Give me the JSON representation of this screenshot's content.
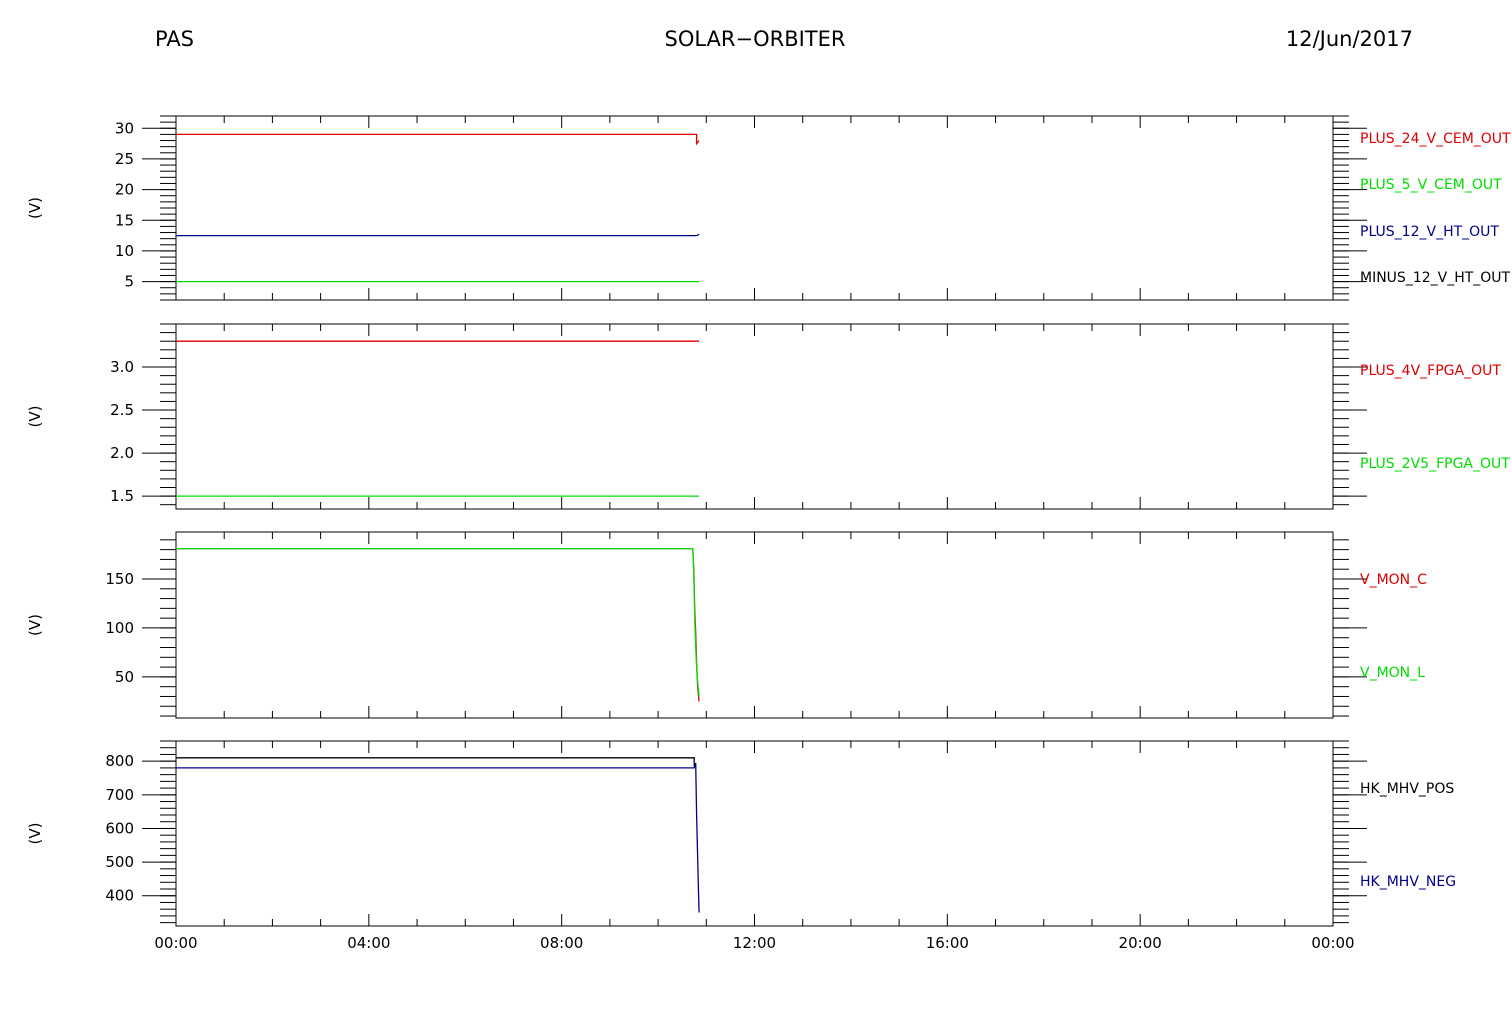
{
  "header": {
    "left": "PAS",
    "center": "SOLAR−ORBITER",
    "right": "12/Jun/2017"
  },
  "colors": {
    "red": "#e00000",
    "green": "#00dd00",
    "blue": "#00008b",
    "black": "#000000"
  },
  "chart_data": [
    {
      "type": "line",
      "ylabel": "(V)",
      "ylim": [
        2,
        32
      ],
      "yticks": [
        5,
        10,
        15,
        20,
        25,
        30
      ],
      "yminor": 1,
      "xlim": [
        0,
        24
      ],
      "series": [
        {
          "name": "PLUS_24_V_CEM_OUT",
          "color": "#e00000",
          "x": [
            0,
            10.8,
            10.8,
            10.85
          ],
          "y": [
            29.0,
            29.0,
            27.5,
            28.0
          ]
        },
        {
          "name": "PLUS_5_V_CEM_OUT",
          "color": "#00dd00",
          "x": [
            0,
            10.85
          ],
          "y": [
            5.0,
            5.0
          ]
        },
        {
          "name": "PLUS_12_V_HT_OUT",
          "color": "#00008b",
          "x": [
            0,
            10.8,
            10.85
          ],
          "y": [
            12.5,
            12.5,
            12.7
          ]
        },
        {
          "name": "MINUS_12_V_HT_OUT",
          "color": "#000000",
          "x": [],
          "y": []
        }
      ]
    },
    {
      "type": "line",
      "ylabel": "(V)",
      "ylim": [
        1.35,
        3.5
      ],
      "yticks": [
        1.5,
        2.0,
        2.5,
        3.0
      ],
      "yticklabels": [
        "1.5",
        "2.0",
        "2.5",
        "3.0"
      ],
      "yminor": 0.1,
      "xlim": [
        0,
        24
      ],
      "series": [
        {
          "name": "PLUS_4V_FPGA_OUT",
          "color": "#e00000",
          "x": [
            0,
            10.85
          ],
          "y": [
            3.3,
            3.3
          ]
        },
        {
          "name": "PLUS_2V5_FPGA_OUT",
          "color": "#00dd00",
          "x": [
            0,
            10.85
          ],
          "y": [
            1.5,
            1.5
          ]
        }
      ]
    },
    {
      "type": "line",
      "ylabel": "(V)",
      "ylim": [
        8,
        198
      ],
      "yticks": [
        50,
        100,
        150
      ],
      "yminor": 10,
      "xlim": [
        0,
        24
      ],
      "series": [
        {
          "name": "V_MON_C",
          "color": "#e00000",
          "x": [
            0,
            10.72,
            10.74,
            10.76,
            10.78,
            10.8,
            10.82,
            10.85
          ],
          "y": [
            181,
            181,
            160,
            120,
            95,
            65,
            40,
            25
          ]
        },
        {
          "name": "V_MON_L",
          "color": "#00dd00",
          "x": [
            0,
            10.72,
            10.74,
            10.76,
            10.78,
            10.8,
            10.82,
            10.85
          ],
          "y": [
            181,
            181,
            155,
            110,
            80,
            60,
            45,
            30
          ]
        }
      ]
    },
    {
      "type": "line",
      "ylabel": "(V)",
      "ylim": [
        310,
        860
      ],
      "yticks": [
        400,
        500,
        600,
        700,
        800
      ],
      "yminor": 20,
      "xlim": [
        0,
        24
      ],
      "series": [
        {
          "name": "HK_MHV_POS",
          "color": "#000000",
          "x": [
            0,
            10.75,
            10.75
          ],
          "y": [
            810,
            810,
            785
          ]
        },
        {
          "name": "HK_MHV_NEG",
          "color": "#00008b",
          "x": [
            0,
            10.75,
            10.78,
            10.8,
            10.82,
            10.84,
            10.85
          ],
          "y": [
            780,
            780,
            795,
            640,
            520,
            400,
            350
          ]
        }
      ]
    }
  ],
  "xaxis": {
    "ticks": [
      0,
      4,
      8,
      12,
      16,
      20,
      24
    ],
    "labels": [
      "00:00",
      "04:00",
      "08:00",
      "12:00",
      "16:00",
      "20:00",
      "00:00"
    ]
  }
}
